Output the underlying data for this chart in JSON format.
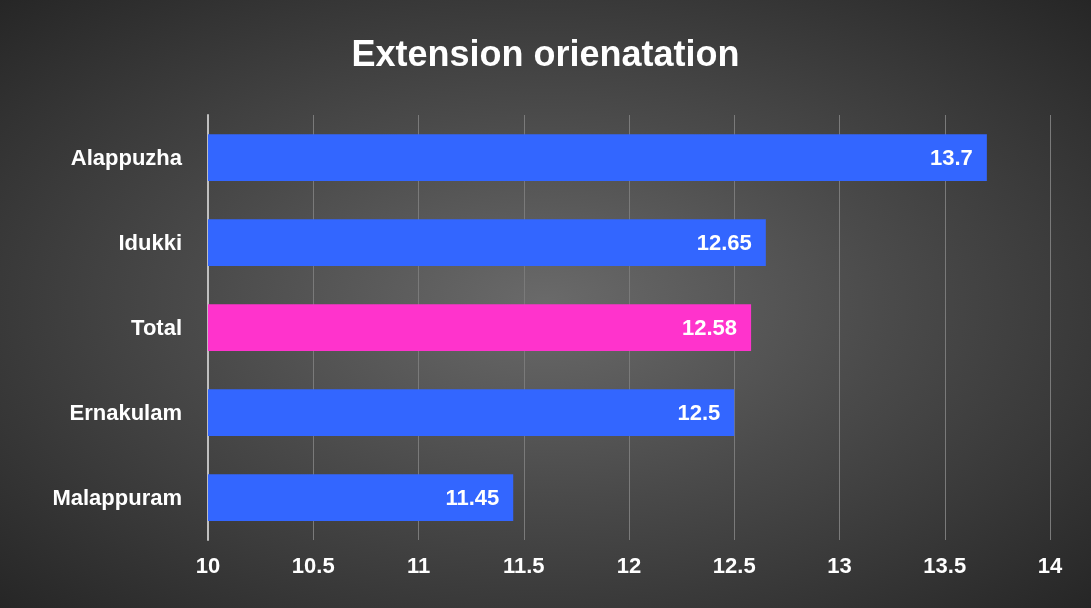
{
  "chart_data": {
    "type": "bar",
    "orientation": "horizontal",
    "title": "Extension orienatation",
    "categories": [
      "Alappuzha",
      "Idukki",
      "Total",
      "Ernakulam",
      "Malappuram"
    ],
    "values": [
      13.7,
      12.65,
      12.58,
      12.5,
      11.45
    ],
    "colors": [
      "#3366ff",
      "#3366ff",
      "#ff33cc",
      "#3366ff",
      "#3366ff"
    ],
    "xlim": [
      10,
      14
    ],
    "xticks": [
      10,
      10.5,
      11,
      11.5,
      12,
      12.5,
      13,
      13.5,
      14
    ],
    "grid": "x",
    "data_labels": true
  }
}
